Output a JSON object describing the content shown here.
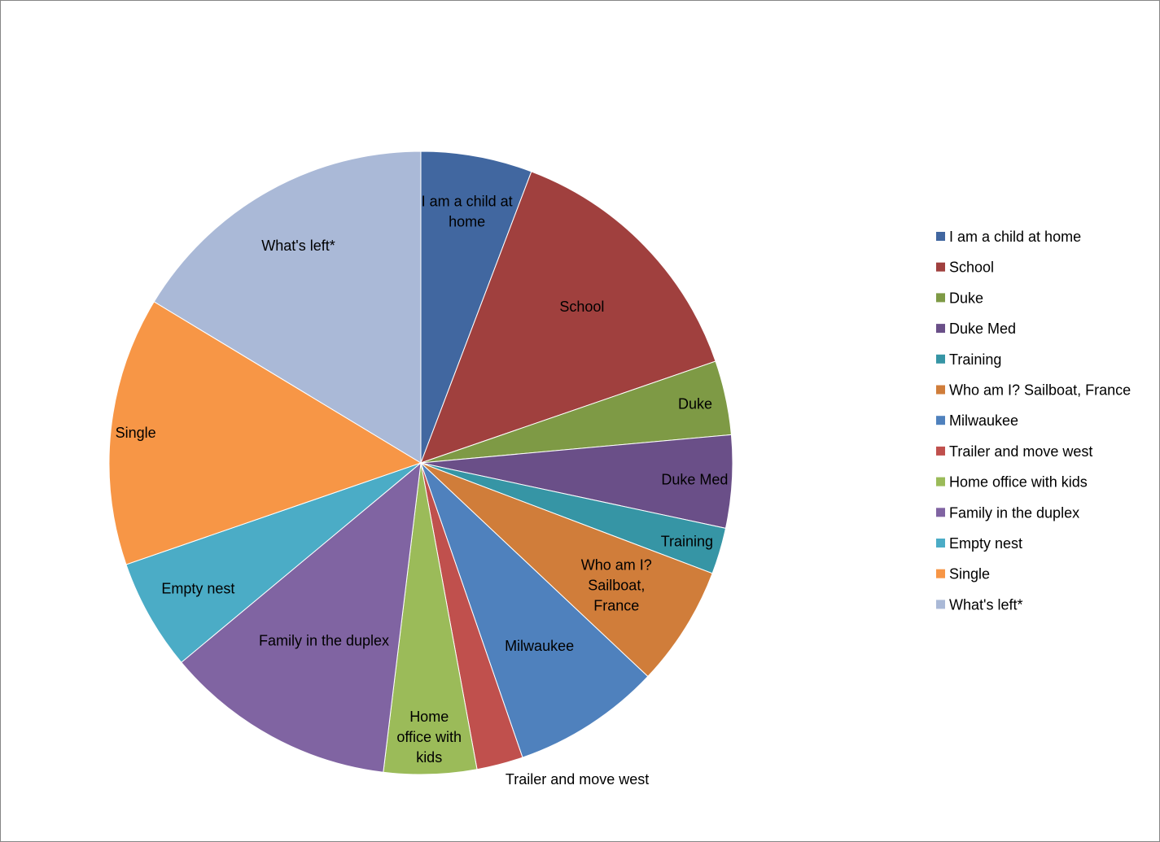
{
  "chart_data": {
    "type": "pie",
    "title": "",
    "legend_position": "right",
    "start_angle_deg": 0,
    "direction": "clockwise",
    "slices": [
      {
        "name": "I am a child at home",
        "value": 6,
        "color": "#4167A0",
        "slice_label": [
          "I am a child at",
          "home"
        ]
      },
      {
        "name": "School",
        "value": 14.5,
        "color": "#A0403E",
        "slice_label": [
          "School"
        ]
      },
      {
        "name": "Duke",
        "value": 4,
        "color": "#7E9A45",
        "slice_label": [
          "Duke"
        ]
      },
      {
        "name": "Duke Med",
        "value": 5,
        "color": "#6A4F88",
        "slice_label": [
          "Duke Med"
        ]
      },
      {
        "name": "Training",
        "value": 2.5,
        "color": "#3695A5",
        "slice_label": [
          "Training"
        ]
      },
      {
        "name": "Who am I?  Sailboat, France",
        "value": 6.5,
        "color": "#D07D3A",
        "slice_label": [
          "Who am I?",
          "Sailboat,",
          "France"
        ]
      },
      {
        "name": "Milwaukee",
        "value": 8,
        "color": "#4F81BD",
        "slice_label": [
          "Milwaukee"
        ]
      },
      {
        "name": "Trailer and move west",
        "value": 2.5,
        "color": "#C0504D",
        "slice_label": [
          "Trailer and move west"
        ]
      },
      {
        "name": "Home office with kids",
        "value": 5,
        "color": "#9BBB59",
        "slice_label": [
          "Home",
          "office with",
          "kids"
        ]
      },
      {
        "name": "Family in the duplex",
        "value": 12.5,
        "color": "#8064A2",
        "slice_label": [
          "Family in the duplex"
        ]
      },
      {
        "name": "Empty nest",
        "value": 6,
        "color": "#4BACC6",
        "slice_label": [
          "Empty nest"
        ]
      },
      {
        "name": "Single",
        "value": 14.5,
        "color": "#F79646",
        "slice_label": [
          "Single"
        ]
      },
      {
        "name": "What's left*",
        "value": 17,
        "color": "#AAB9D7",
        "slice_label": [
          "What's left*"
        ]
      }
    ]
  }
}
